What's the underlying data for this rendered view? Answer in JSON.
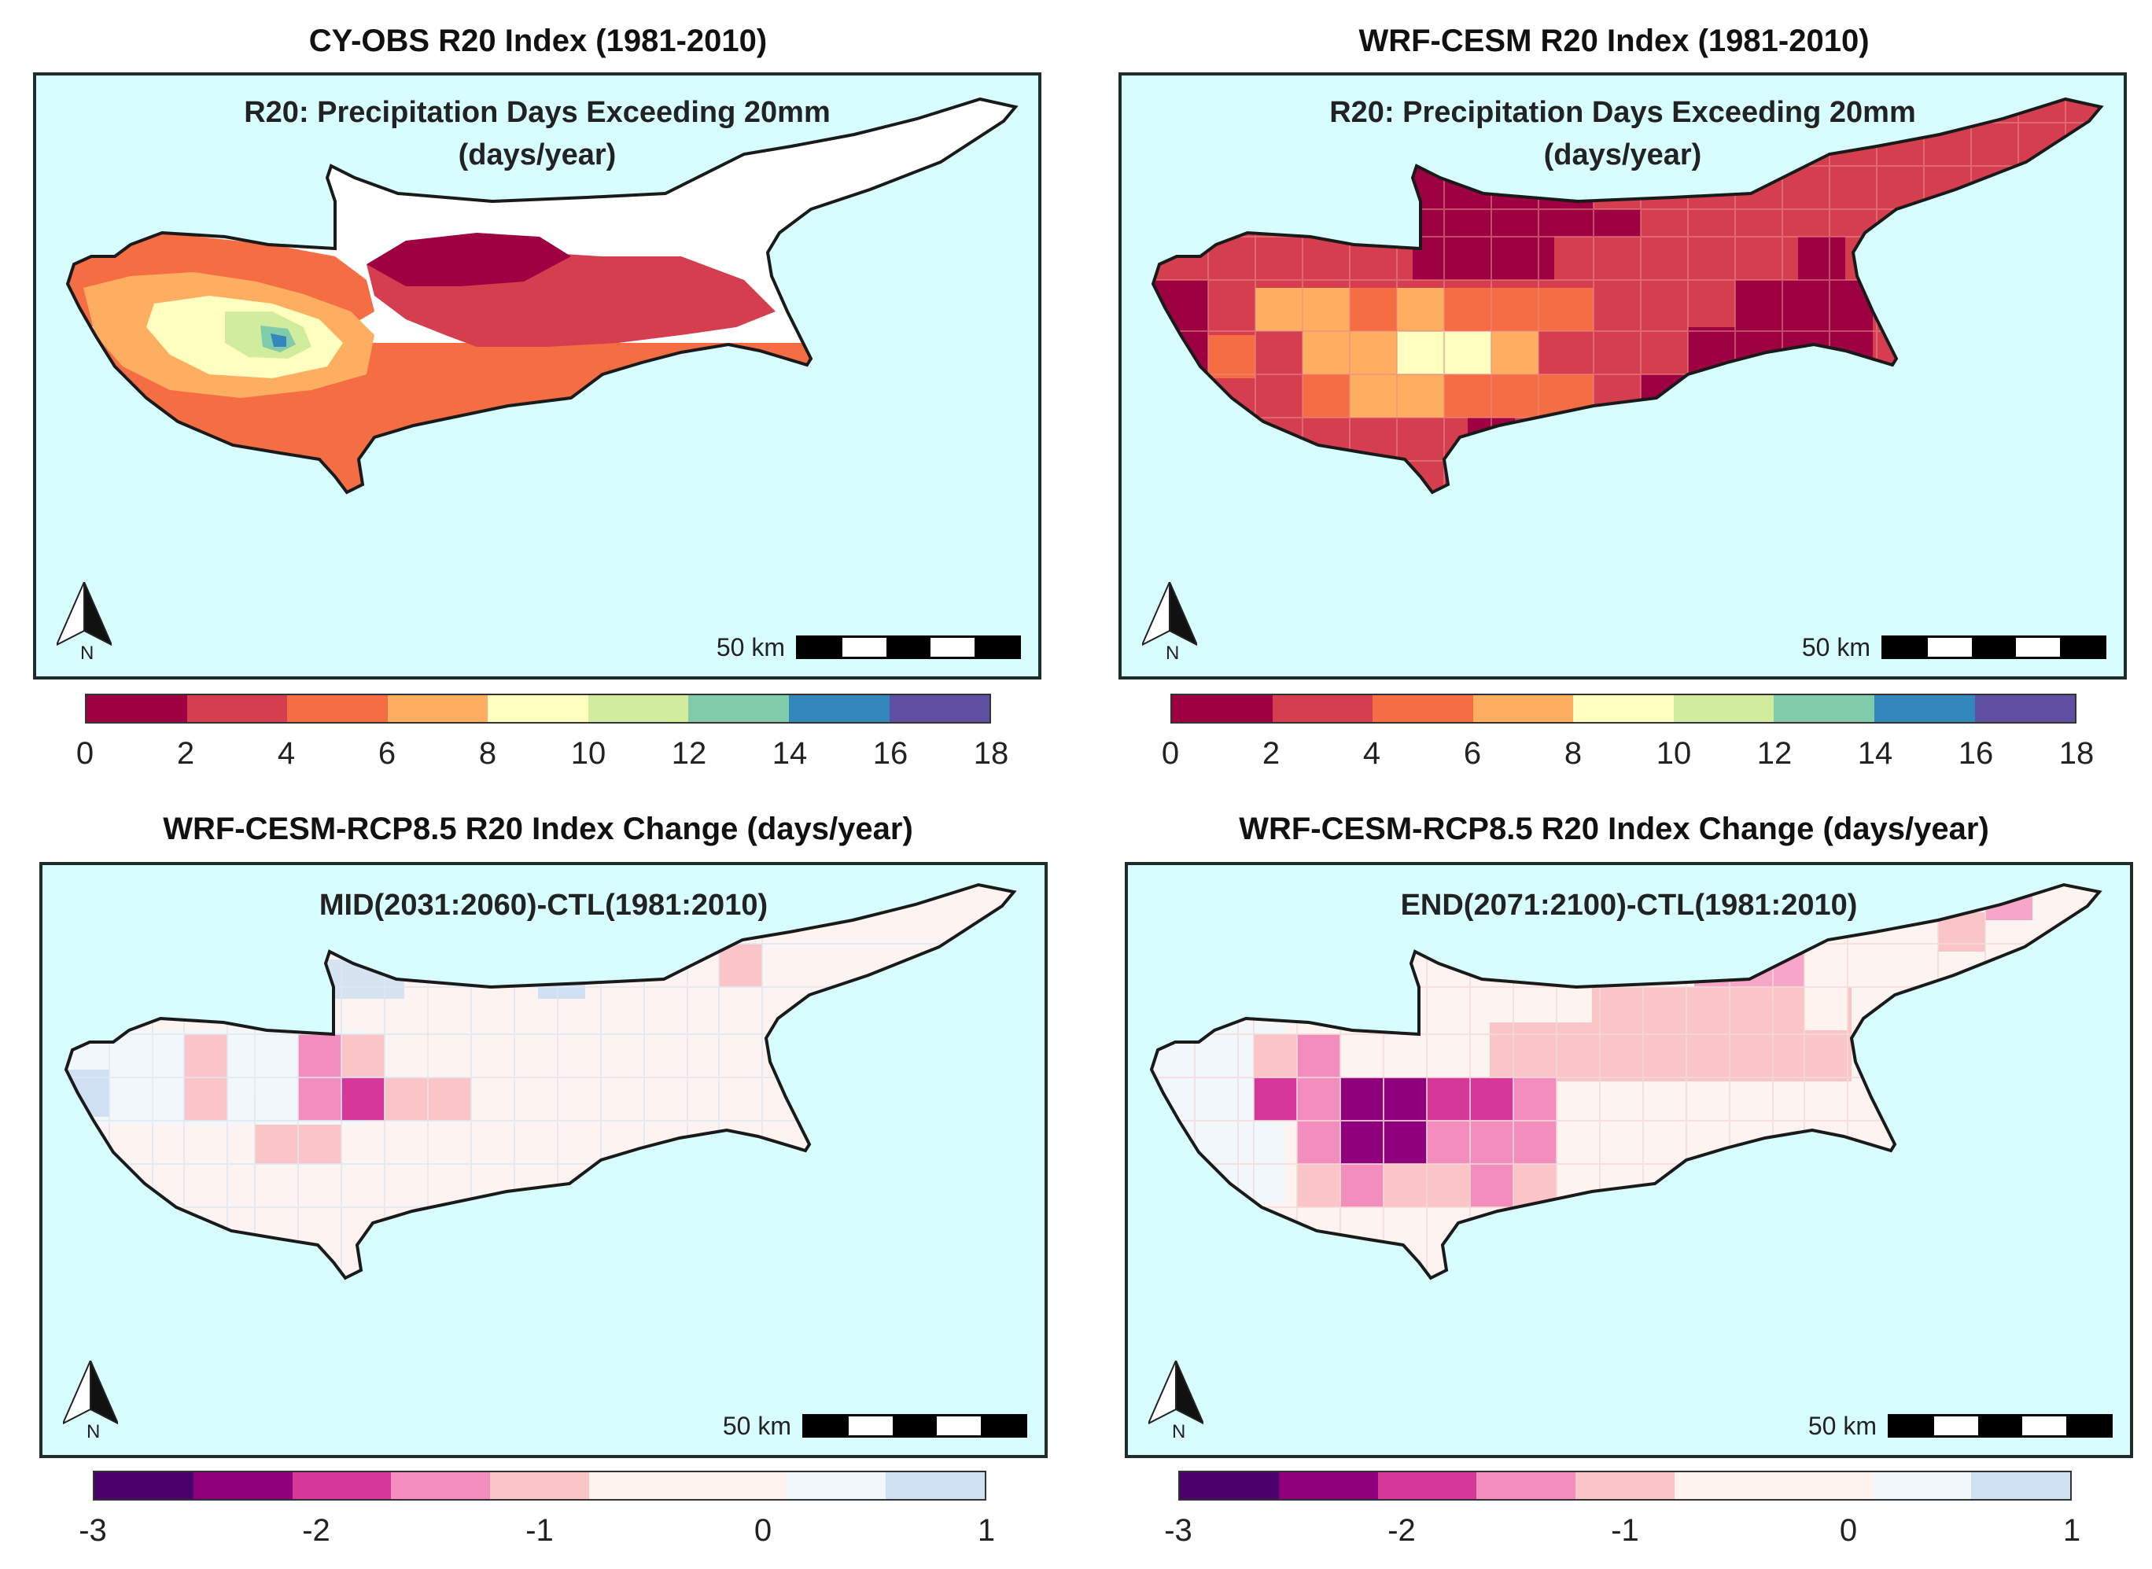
{
  "panels": [
    {
      "id": "obs",
      "title": "CY-OBS R20 Index (1981-2010)",
      "subtitle_line1": "R20: Precipitation Days Exceeding 20mm",
      "subtitle_line2": "(days/year)",
      "north_label": "N",
      "scale_label": "50 km"
    },
    {
      "id": "wrf",
      "title": "WRF-CESM R20 Index (1981-2010)",
      "subtitle_line1": "R20: Precipitation Days Exceeding 20mm",
      "subtitle_line2": "(days/year)",
      "north_label": "N",
      "scale_label": "50 km"
    },
    {
      "id": "mid",
      "title": "WRF-CESM-RCP8.5 R20 Index Change (days/year)",
      "subtitle_line1": "MID(2031:2060)-CTL(1981:2010)",
      "north_label": "N",
      "scale_label": "50 km"
    },
    {
      "id": "end",
      "title": "WRF-CESM-RCP8.5 R20 Index Change (days/year)",
      "subtitle_line1": "END(2071:2100)-CTL(1981:2010)",
      "north_label": "N",
      "scale_label": "50 km"
    }
  ],
  "colorbar_top": {
    "ticks": [
      "0",
      "2",
      "4",
      "6",
      "8",
      "10",
      "12",
      "14",
      "16",
      "18"
    ],
    "colors": [
      "#9e0142",
      "#d53e4f",
      "#f46d43",
      "#fdae61",
      "#ffffbf",
      "#d1ec9c",
      "#7fcbaa",
      "#3288bd",
      "#5e4fa2"
    ]
  },
  "colorbar_bottom": {
    "ticks": [
      "-3",
      "-2",
      "-1",
      "0",
      "1"
    ],
    "colors": [
      "#49006a",
      "#8e007c",
      "#d6389a",
      "#f28dbd",
      "#fbc5c8",
      "#fff3ef",
      "#fff3ef",
      "#f2f7fc",
      "#cfe0f2"
    ]
  },
  "colors": {
    "sea": "#d7fdff",
    "frame": "#1f2d2a",
    "land_nodata": "#ffffff"
  }
}
